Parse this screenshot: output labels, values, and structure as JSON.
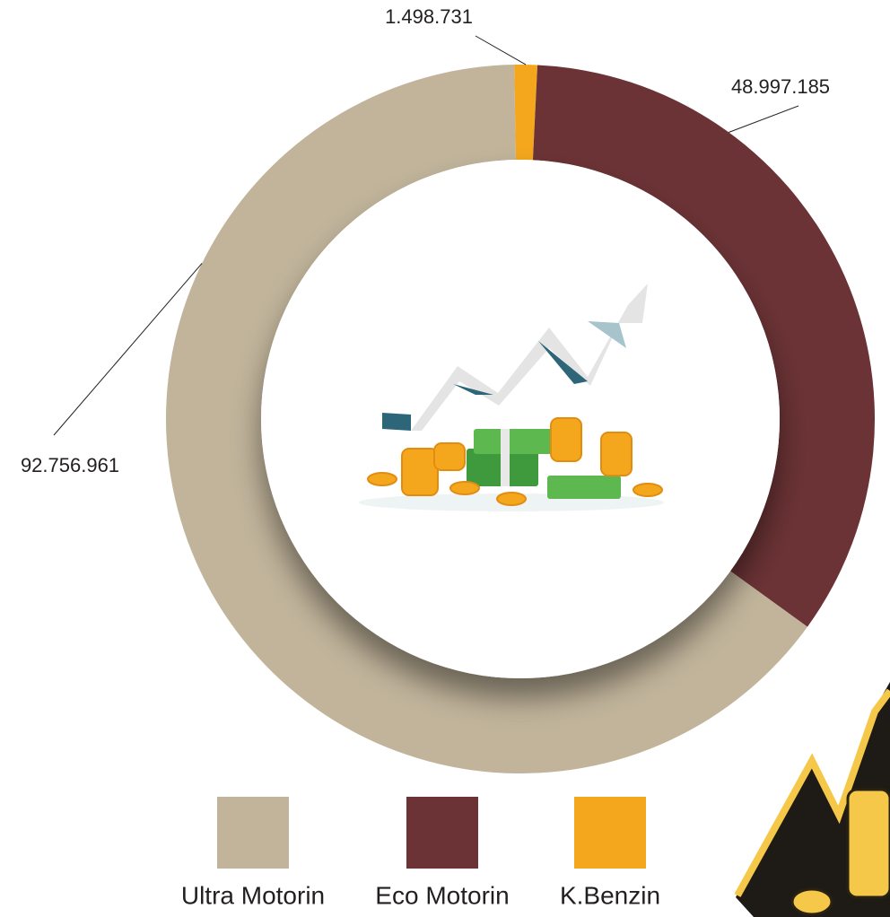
{
  "chart_data": {
    "type": "donut",
    "categories": [
      "Ultra Motorin",
      "Eco Motorin",
      "K.Benzin"
    ],
    "values": [
      92756961,
      48997185,
      1498731
    ],
    "value_labels": [
      "92.756.961",
      "48.997.185",
      "1.498.731"
    ],
    "colors": [
      "#c1b49b",
      "#6b3335",
      "#f4a71d"
    ],
    "legend": "bottom"
  }
}
